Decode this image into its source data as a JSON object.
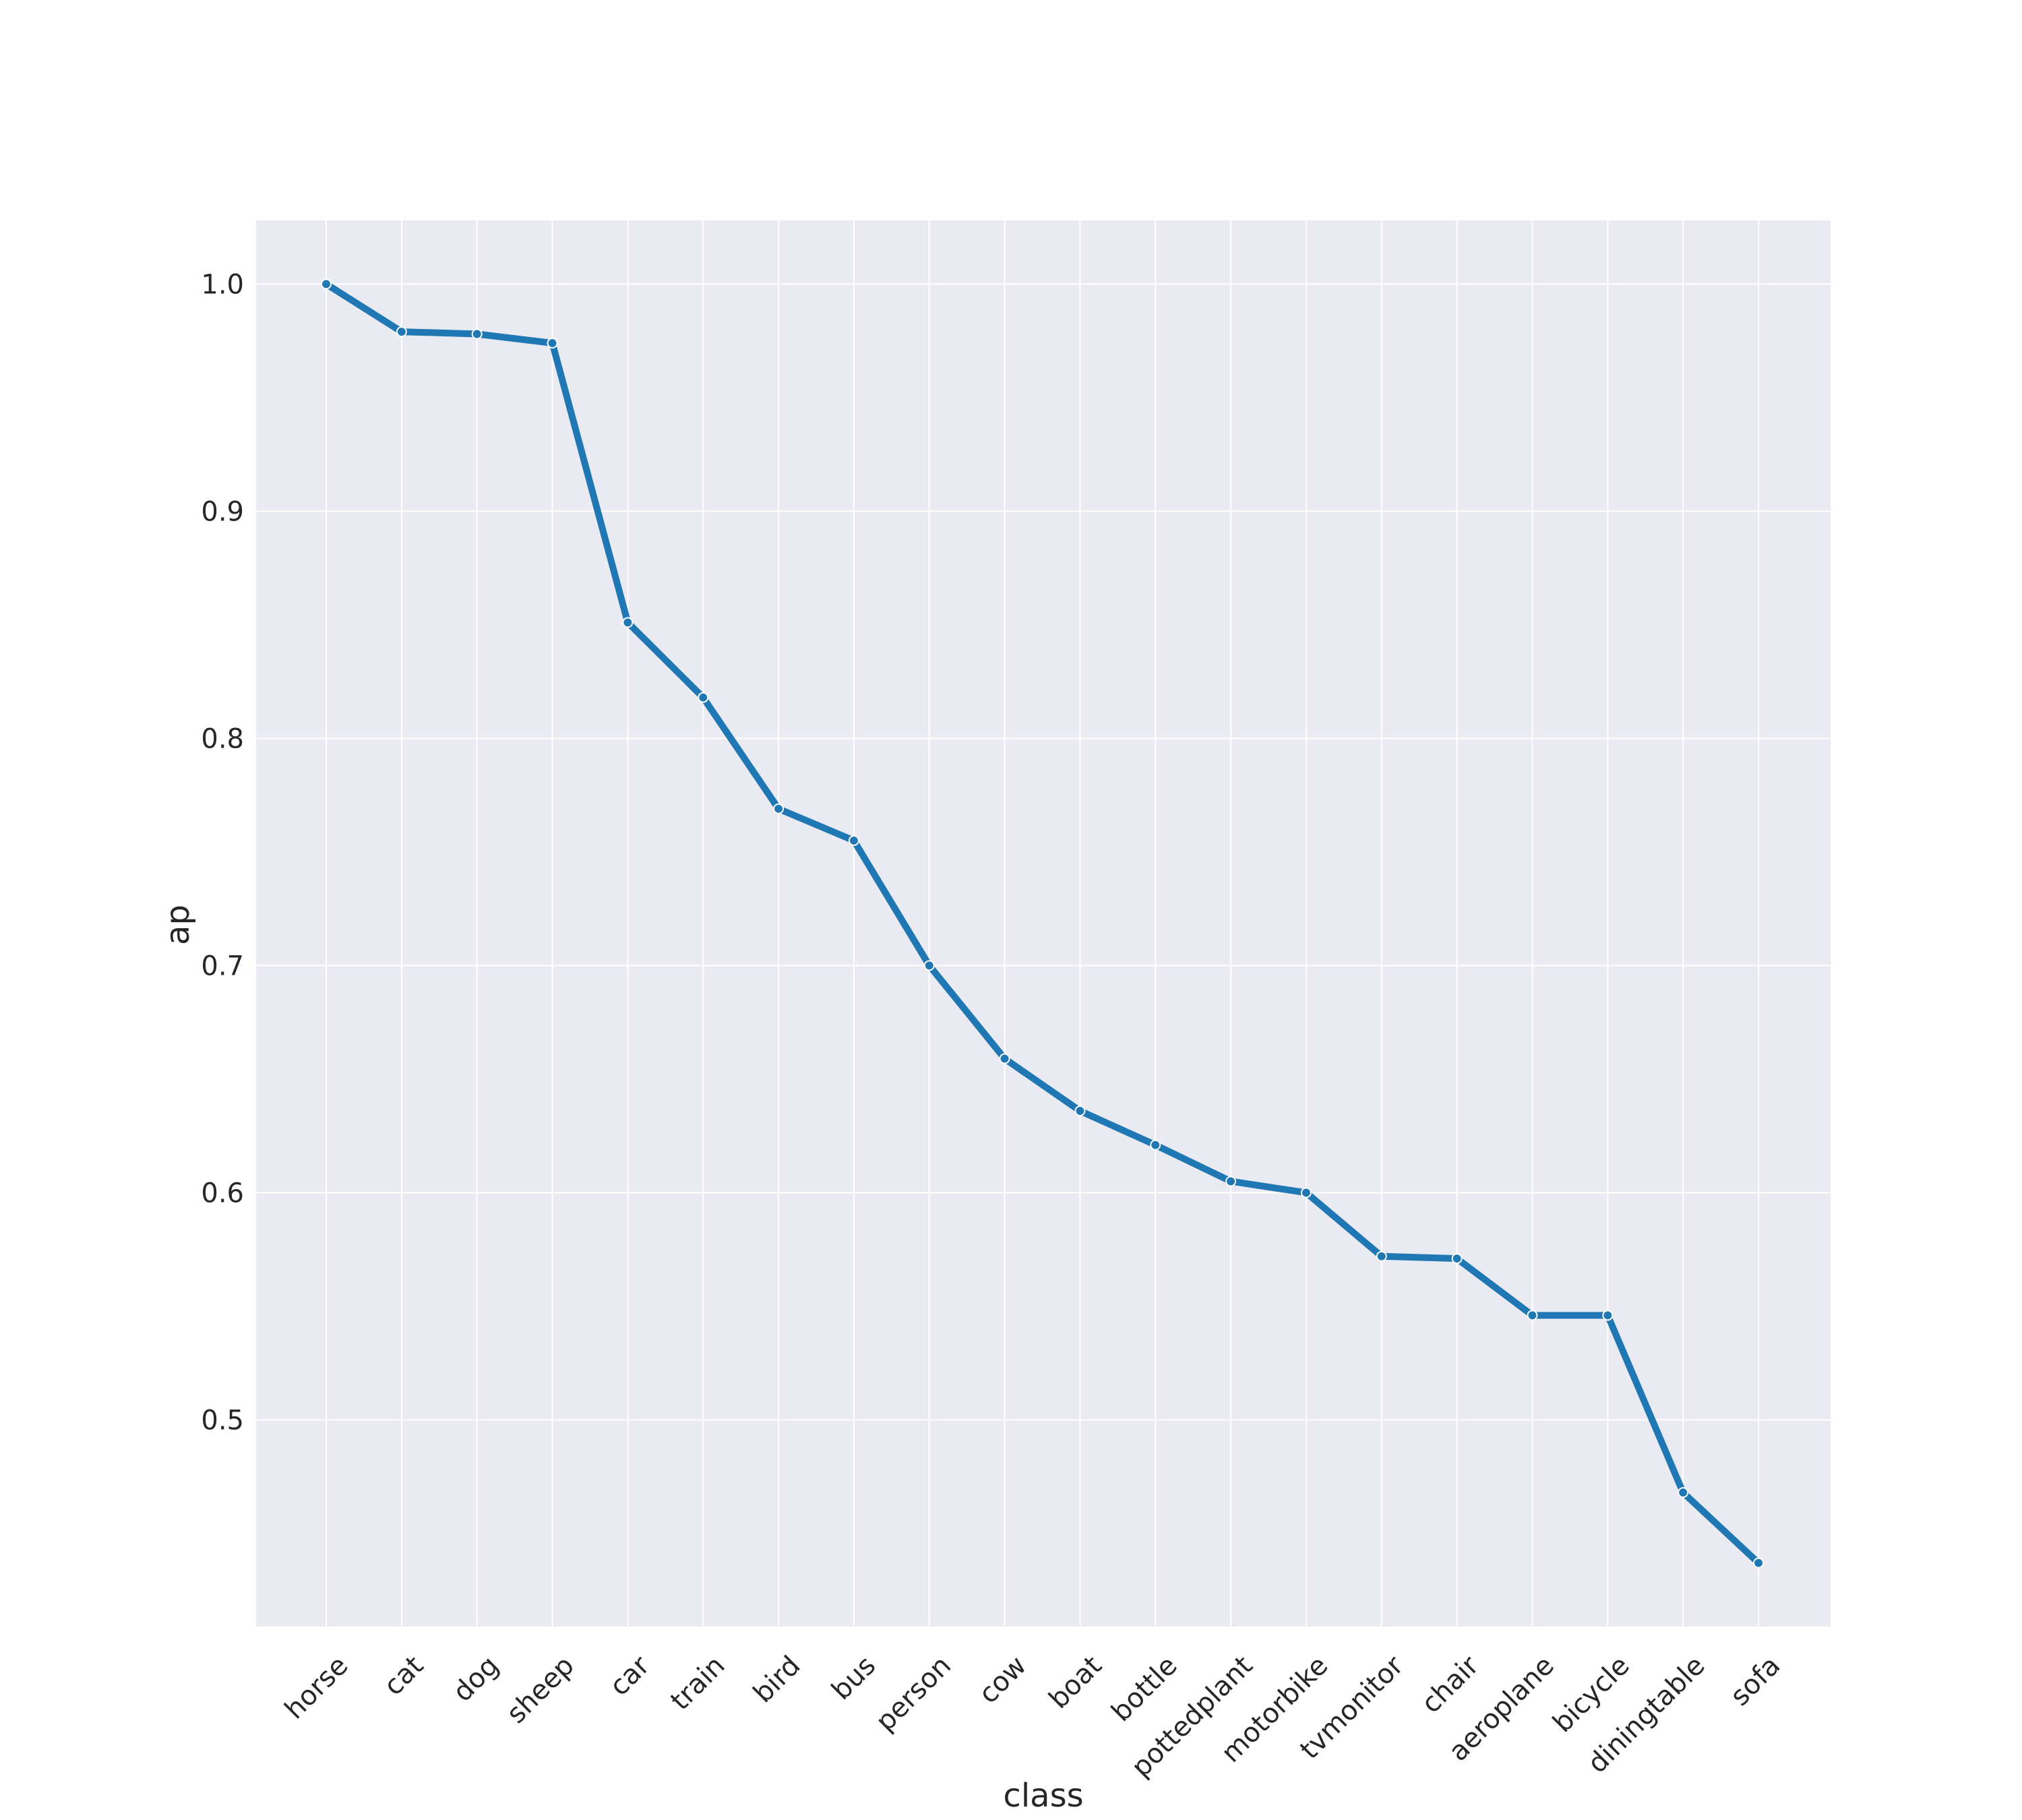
{
  "chart_data": {
    "type": "line",
    "title": "",
    "xlabel": "class",
    "ylabel": "ap",
    "categories": [
      "horse",
      "cat",
      "dog",
      "sheep",
      "car",
      "train",
      "bird",
      "bus",
      "person",
      "cow",
      "boat",
      "bottle",
      "pottedplant",
      "motorbike",
      "tvmonitor",
      "chair",
      "aeroplane",
      "bicycle",
      "diningtable",
      "sofa"
    ],
    "series": [
      {
        "values": [
          1.0,
          0.979,
          0.978,
          0.974,
          0.851,
          0.818,
          0.769,
          0.755,
          0.7,
          0.659,
          0.636,
          0.621,
          0.605,
          0.6,
          0.572,
          0.571,
          0.546,
          0.546,
          0.468,
          0.437
        ],
        "color": "#1f77b4"
      }
    ],
    "yticks": [
      "0.5",
      "0.6",
      "0.7",
      "0.8",
      "0.9",
      "1.0"
    ],
    "ylim": [
      0.409,
      1.028
    ],
    "grid": true,
    "legend": "none",
    "background": "#eaeaf2",
    "grid_color": "#ffffff"
  }
}
